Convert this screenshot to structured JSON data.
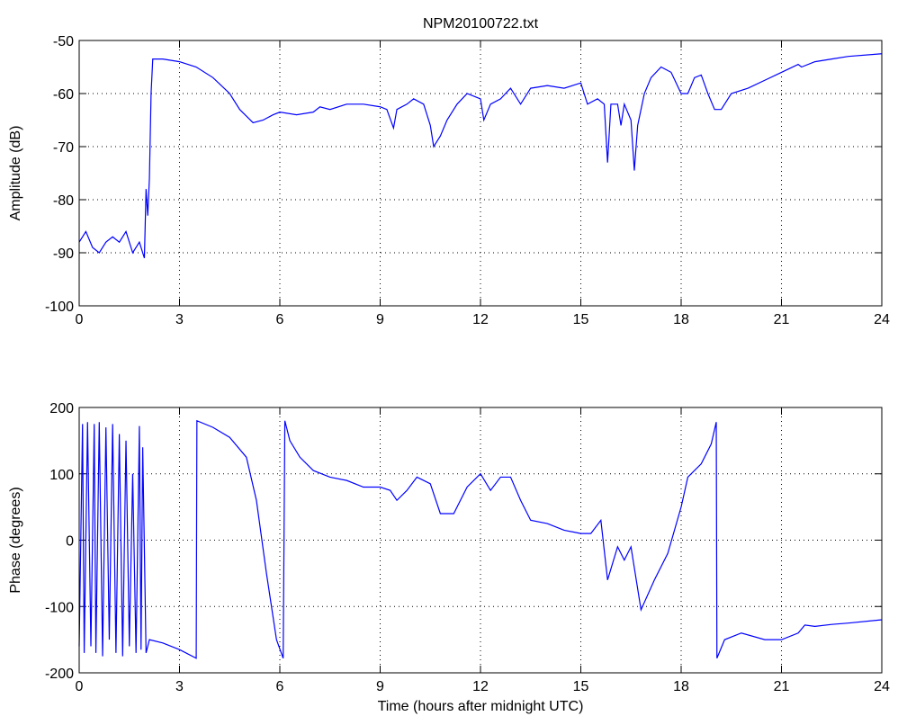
{
  "chart_data": [
    {
      "type": "line",
      "title": "NPM20100722.txt",
      "ylabel": "Amplitude (dB)",
      "xlim": [
        0,
        24
      ],
      "xticks": [
        0,
        3,
        6,
        9,
        12,
        15,
        18,
        21,
        24
      ],
      "ylim": [
        -100,
        -50
      ],
      "yticks": [
        -100,
        -90,
        -80,
        -70,
        -60,
        -50
      ],
      "grid": true,
      "series": [
        {
          "name": "Amplitude",
          "color": "#0000ff",
          "x": [
            0,
            0.2,
            0.4,
            0.6,
            0.8,
            1.0,
            1.2,
            1.4,
            1.6,
            1.8,
            1.95,
            2.0,
            2.05,
            2.1,
            2.15,
            2.2,
            2.5,
            3,
            3.5,
            4,
            4.5,
            4.8,
            5.2,
            5.5,
            5.8,
            6,
            6.5,
            7,
            7.2,
            7.5,
            8,
            8.5,
            9,
            9.2,
            9.4,
            9.5,
            9.8,
            10,
            10.3,
            10.5,
            10.6,
            10.8,
            11,
            11.3,
            11.6,
            12,
            12.1,
            12.3,
            12.6,
            12.9,
            13.2,
            13.5,
            14,
            14.5,
            15,
            15.2,
            15.5,
            15.7,
            15.8,
            15.9,
            16.1,
            16.2,
            16.3,
            16.5,
            16.6,
            16.7,
            16.9,
            17.1,
            17.4,
            17.7,
            18,
            18.2,
            18.4,
            18.6,
            18.8,
            19,
            19.2,
            19.5,
            20,
            20.5,
            21,
            21.5,
            21.6,
            22,
            22.5,
            23,
            24
          ],
          "values": [
            -88,
            -86,
            -89,
            -90,
            -88,
            -87,
            -88,
            -86,
            -90,
            -88,
            -91,
            -78,
            -83,
            -76,
            -60,
            -53.5,
            -53.5,
            -54,
            -55,
            -57,
            -60,
            -63,
            -65.5,
            -65,
            -64,
            -63.5,
            -64,
            -63.5,
            -62.5,
            -63,
            -62,
            -62,
            -62.5,
            -63,
            -66.5,
            -63,
            -62,
            -61,
            -62,
            -66,
            -70,
            -68,
            -65,
            -62,
            -60,
            -61,
            -65,
            -62,
            -61,
            -59,
            -62,
            -59,
            -58.5,
            -59,
            -58,
            -62,
            -61,
            -62,
            -73,
            -62,
            -62,
            -66,
            -62,
            -65,
            -74.5,
            -66,
            -60,
            -57,
            -55,
            -56,
            -60,
            -60,
            -57,
            -56.5,
            -60,
            -63,
            -63,
            -60,
            -59,
            -57.5,
            -56,
            -54.5,
            -55,
            -54,
            -53.5,
            -53,
            -52.5
          ]
        }
      ]
    },
    {
      "type": "line",
      "ylabel": "Phase (degrees)",
      "xlabel": "Time (hours after midnight UTC)",
      "xlim": [
        0,
        24
      ],
      "xticks": [
        0,
        3,
        6,
        9,
        12,
        15,
        18,
        21,
        24
      ],
      "ylim": [
        -200,
        200
      ],
      "yticks": [
        -200,
        -100,
        0,
        100,
        200
      ],
      "grid": true,
      "series": [
        {
          "name": "Phase",
          "color": "#0000ff",
          "x": [
            0,
            0.1,
            0.15,
            0.25,
            0.35,
            0.45,
            0.5,
            0.6,
            0.7,
            0.8,
            0.9,
            1.0,
            1.1,
            1.2,
            1.3,
            1.4,
            1.5,
            1.6,
            1.7,
            1.8,
            1.85,
            1.9,
            2.0,
            2.1,
            2.5,
            3,
            3.5,
            3.52,
            4,
            4.5,
            5,
            5.3,
            5.6,
            5.9,
            6.1,
            6.15,
            6.3,
            6.6,
            7,
            7.5,
            8,
            8.5,
            9,
            9.3,
            9.5,
            9.8,
            10.1,
            10.5,
            10.8,
            11.2,
            11.6,
            12,
            12.3,
            12.6,
            12.9,
            13.2,
            13.5,
            14,
            14.5,
            15,
            15.3,
            15.6,
            15.8,
            16.1,
            16.3,
            16.5,
            16.8,
            17.2,
            17.6,
            18,
            18.2,
            18.6,
            18.9,
            19.05,
            19.07,
            19.3,
            19.8,
            20.5,
            21,
            21.5,
            21.7,
            22,
            22.5,
            23,
            24
          ],
          "values": [
            -160,
            175,
            -170,
            178,
            -160,
            175,
            -170,
            178,
            -175,
            170,
            -150,
            175,
            -170,
            160,
            -175,
            150,
            -160,
            100,
            -170,
            172,
            -165,
            140,
            -170,
            -150,
            -155,
            -165,
            -178,
            180,
            170,
            155,
            125,
            60,
            -50,
            -150,
            -178,
            180,
            150,
            125,
            105,
            95,
            90,
            80,
            80,
            75,
            60,
            75,
            95,
            85,
            40,
            40,
            80,
            100,
            75,
            95,
            95,
            60,
            30,
            25,
            15,
            10,
            10,
            30,
            -60,
            -10,
            -30,
            -10,
            -105,
            -60,
            -20,
            50,
            95,
            115,
            145,
            178,
            -178,
            -150,
            -140,
            -150,
            -150,
            -140,
            -128,
            -130,
            -127,
            -125,
            -120
          ]
        }
      ]
    }
  ]
}
